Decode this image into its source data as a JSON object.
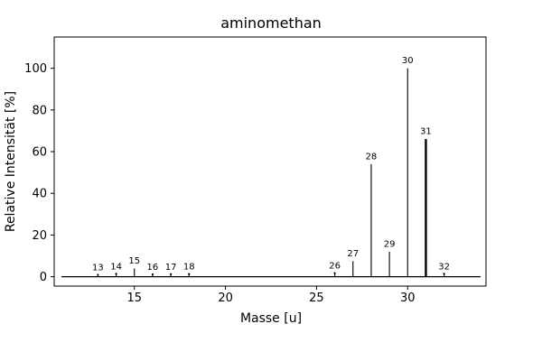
{
  "title": "aminomethan",
  "chart_data": {
    "type": "bar",
    "style": "stem-mass-spectrum",
    "title": "aminomethan",
    "xlabel": "Masse [u]",
    "ylabel": "Relative Intensität [%]",
    "xlim": [
      10.6,
      34.3
    ],
    "ylim": [
      -4.5,
      115
    ],
    "xticks": [
      15,
      20,
      25,
      30
    ],
    "yticks": [
      0,
      20,
      40,
      60,
      80,
      100
    ],
    "grid": false,
    "legend": false,
    "baseline": {
      "value": 0,
      "x_from": 11,
      "x_to": 34
    },
    "colors": {
      "stems": "#000000",
      "axes": "#000000",
      "text": "#000000",
      "background": "#ffffff"
    },
    "points": [
      {
        "mass": 13,
        "intensity": 0.7,
        "label": "13"
      },
      {
        "mass": 14,
        "intensity": 1.2,
        "label": "14"
      },
      {
        "mass": 15,
        "intensity": 4.0,
        "label": "15"
      },
      {
        "mass": 16,
        "intensity": 0.9,
        "label": "16"
      },
      {
        "mass": 17,
        "intensity": 1.0,
        "label": "17"
      },
      {
        "mass": 18,
        "intensity": 1.1,
        "label": "18"
      },
      {
        "mass": 26,
        "intensity": 1.5,
        "label": "26"
      },
      {
        "mass": 27,
        "intensity": 7.5,
        "label": "27"
      },
      {
        "mass": 28,
        "intensity": 54,
        "label": "28"
      },
      {
        "mass": 29,
        "intensity": 12,
        "label": "29"
      },
      {
        "mass": 30,
        "intensity": 100,
        "label": "30"
      },
      {
        "mass": 31,
        "intensity": 66,
        "label": "31",
        "bold": true
      },
      {
        "mass": 32,
        "intensity": 1.2,
        "label": "32"
      }
    ]
  }
}
